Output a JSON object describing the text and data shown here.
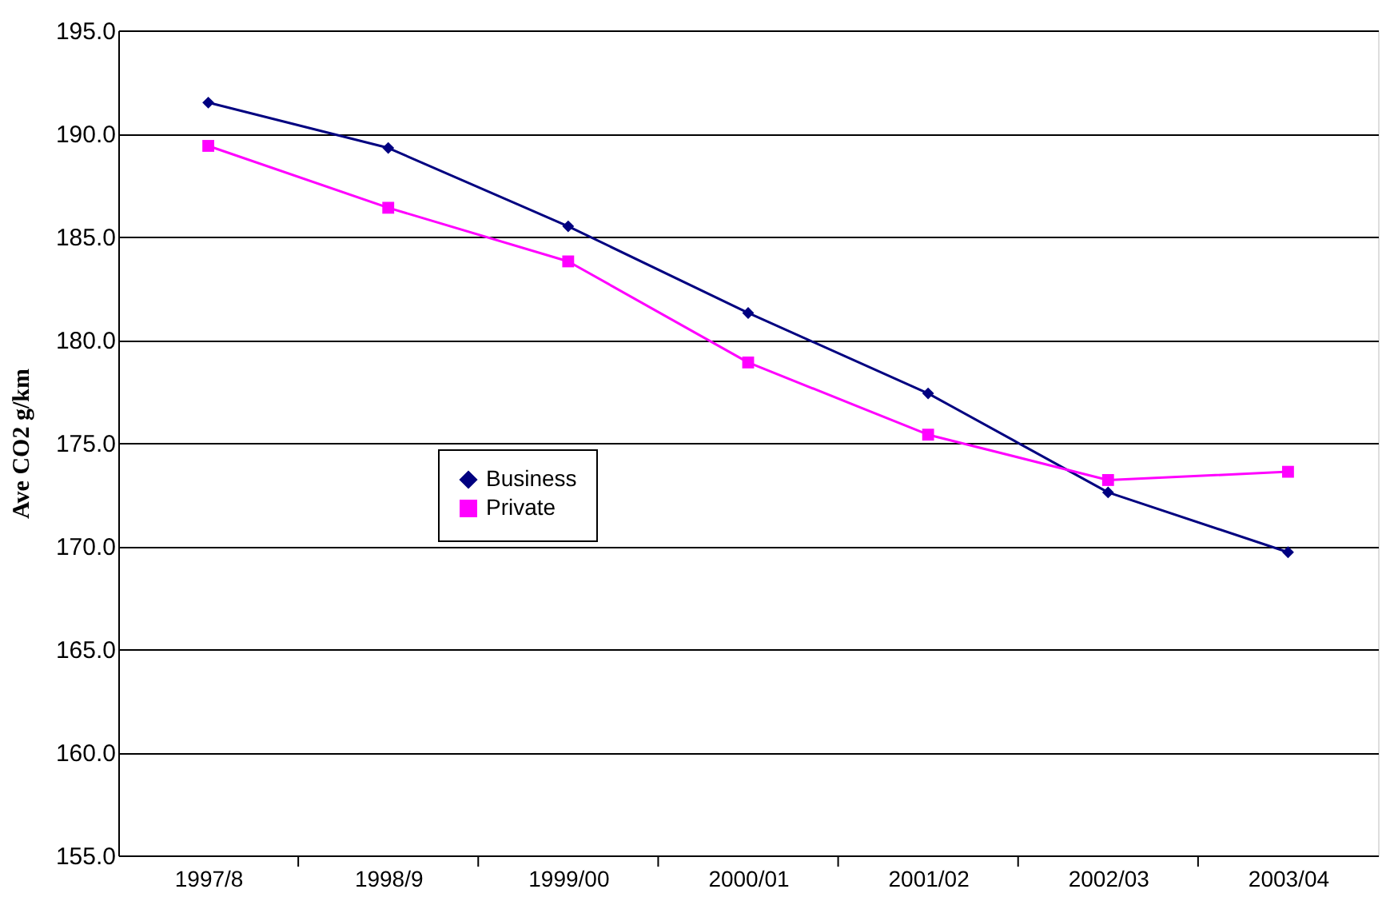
{
  "chart_data": {
    "type": "line",
    "ylabel": "Ave CO2 g/km",
    "categories": [
      "1997/8",
      "1998/9",
      "1999/00",
      "2000/01",
      "2001/02",
      "2002/03",
      "2003/04"
    ],
    "series": [
      {
        "name": "Business",
        "color": "#000080",
        "marker": "diamond",
        "values": [
          191.5,
          189.3,
          185.5,
          181.3,
          177.4,
          172.6,
          169.7
        ]
      },
      {
        "name": "Private",
        "color": "#ff00ff",
        "marker": "square",
        "values": [
          189.4,
          186.4,
          183.8,
          178.9,
          175.4,
          173.2,
          173.6
        ]
      }
    ],
    "ylim": [
      155,
      195
    ],
    "yticks": [
      {
        "value": 155,
        "label": "155.0"
      },
      {
        "value": 160,
        "label": "160.0"
      },
      {
        "value": 165,
        "label": "165.0"
      },
      {
        "value": 170,
        "label": "170.0"
      },
      {
        "value": 175,
        "label": "175.0"
      },
      {
        "value": 180,
        "label": "180.0"
      },
      {
        "value": 185,
        "label": "185.0"
      },
      {
        "value": 190,
        "label": "190.0"
      },
      {
        "value": 195,
        "label": "195.0"
      }
    ],
    "grid": "y",
    "legend": "left",
    "line_style": "solid"
  }
}
